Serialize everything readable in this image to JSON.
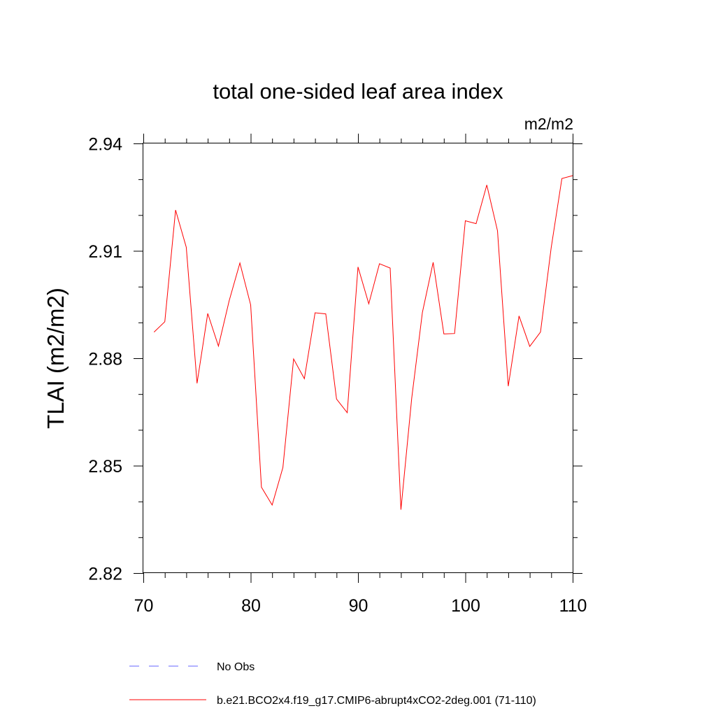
{
  "chart_data": {
    "type": "line",
    "title": "total one-sided leaf area index",
    "units": "m2/m2",
    "ylabel": "TLAI  (m2/m2)",
    "xlabel": "",
    "xlim": [
      70,
      110
    ],
    "ylim": [
      2.82,
      2.94
    ],
    "xticks": [
      70,
      80,
      90,
      100,
      110
    ],
    "xtick_labels": [
      "70",
      "80",
      "90",
      "100",
      "110"
    ],
    "yticks": [
      2.82,
      2.85,
      2.88,
      2.91,
      2.94
    ],
    "ytick_labels": [
      "2.82",
      "2.85",
      "2.88",
      "2.91",
      "2.94"
    ],
    "grid": false,
    "legend_position": "bottom",
    "series": [
      {
        "name": "b.e21.BCO2x4.f19_g17.CMIP6-abrupt4xCO2-2deg.001 (71-110)",
        "color": "#ff0000",
        "dash": "solid",
        "x": [
          71,
          72,
          73,
          74,
          75,
          76,
          77,
          78,
          79,
          80,
          81,
          82,
          83,
          84,
          85,
          86,
          87,
          88,
          89,
          90,
          91,
          92,
          93,
          94,
          95,
          96,
          97,
          98,
          99,
          100,
          101,
          102,
          103,
          104,
          105,
          106,
          107,
          108,
          109,
          110
        ],
        "y": [
          2.8873,
          2.8902,
          2.9214,
          2.911,
          2.873,
          2.8925,
          2.8834,
          2.8961,
          2.9066,
          2.8949,
          2.844,
          2.839,
          2.8495,
          2.8798,
          2.8743,
          2.8927,
          2.8924,
          2.8686,
          2.8648,
          2.9055,
          2.8952,
          2.9064,
          2.9052,
          2.8377,
          2.8688,
          2.8928,
          2.9068,
          2.8868,
          2.8869,
          2.9184,
          2.9176,
          2.9284,
          2.9156,
          2.8722,
          2.8918,
          2.8833,
          2.8873,
          2.9109,
          2.9302,
          2.931
        ]
      }
    ],
    "legend": [
      {
        "label": "No Obs",
        "color": "#6666ff",
        "dash": "dashed"
      },
      {
        "label": "b.e21.BCO2x4.f19_g17.CMIP6-abrupt4xCO2-2deg.001 (71-110)",
        "color": "#ff0000",
        "dash": "solid"
      }
    ]
  }
}
